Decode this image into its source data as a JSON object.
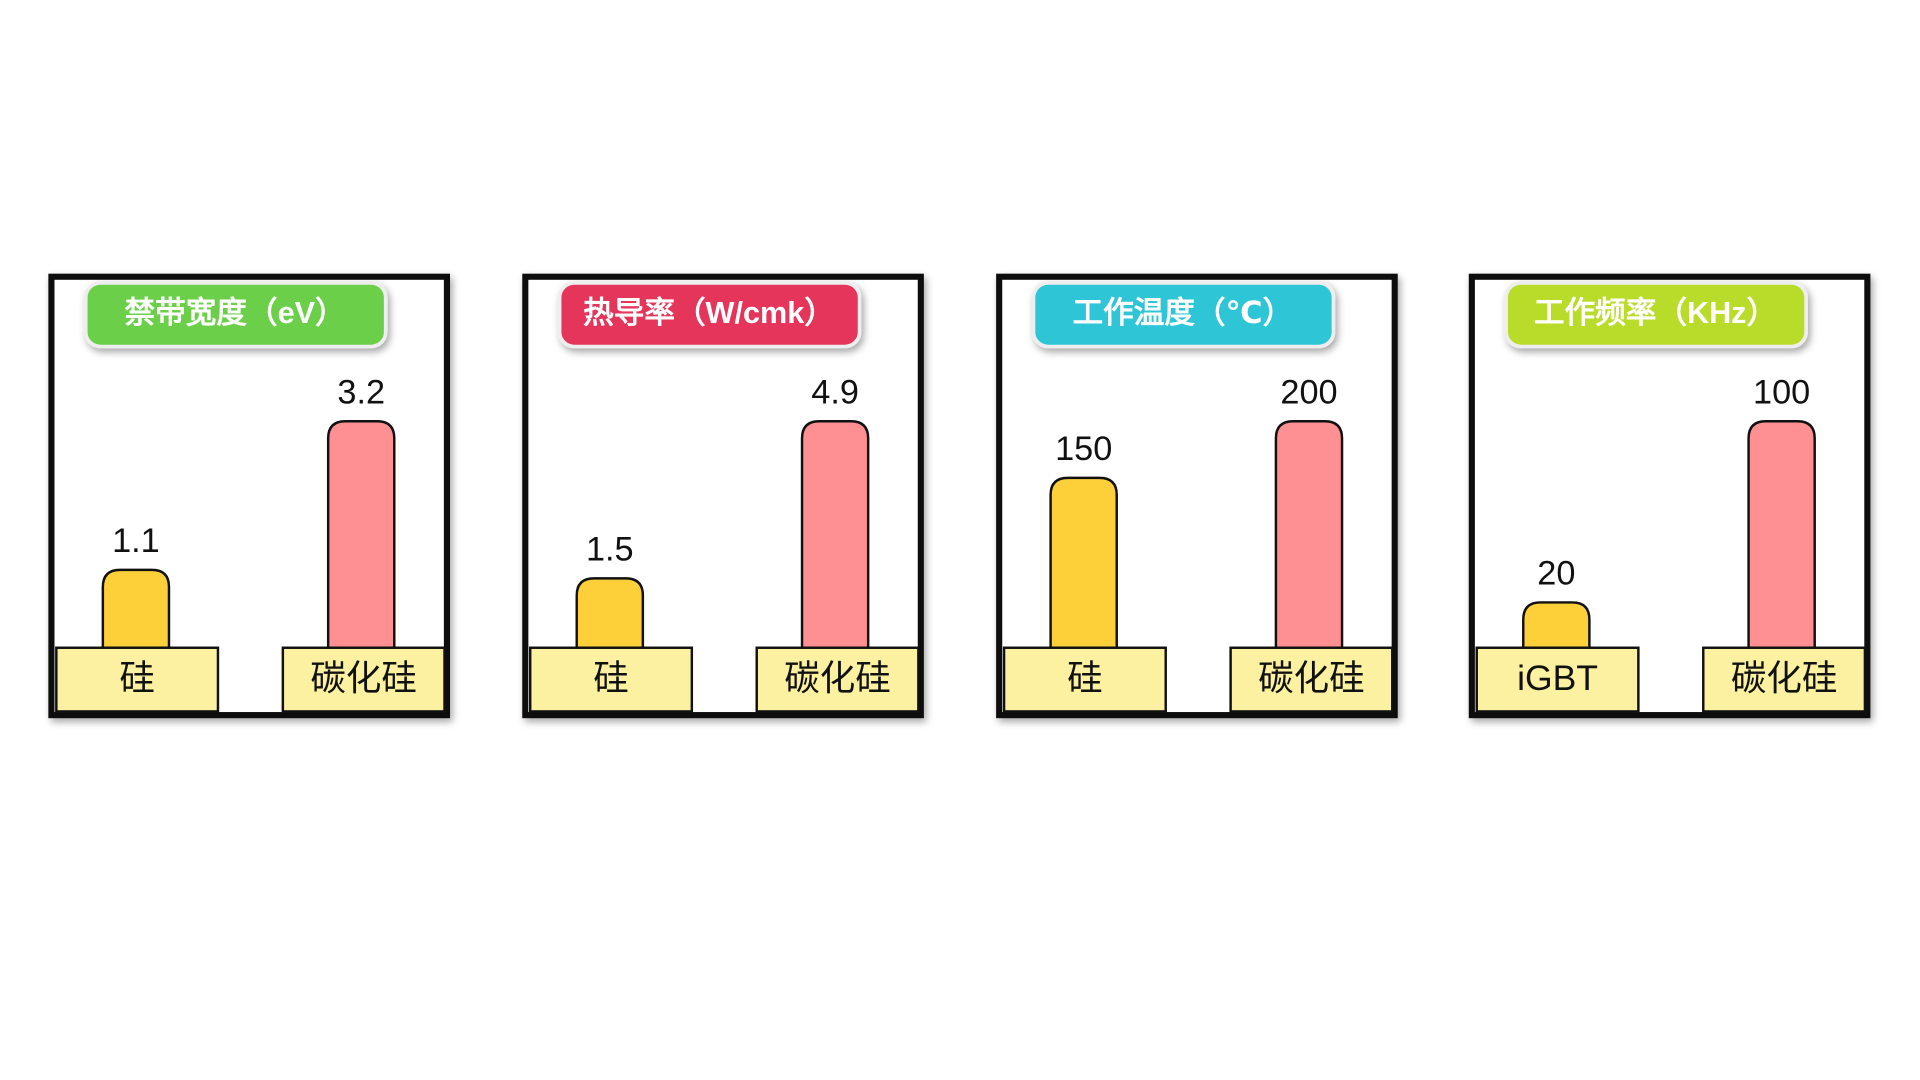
{
  "chart_data": [
    {
      "type": "bar",
      "title": "禁带宽度（eV）",
      "title_color": "#6ccf4a",
      "categories": [
        "硅",
        "碳化硅"
      ],
      "values": [
        1.1,
        3.2
      ],
      "colors": [
        "#fdd03a",
        "#fe8f92"
      ]
    },
    {
      "type": "bar",
      "title": "热导率（W/cmk）",
      "title_color": "#e5365a",
      "categories": [
        "硅",
        "碳化硅"
      ],
      "values": [
        1.5,
        4.9
      ],
      "colors": [
        "#fdd03a",
        "#fe8f92"
      ]
    },
    {
      "type": "bar",
      "title": "工作温度（℃）",
      "title_color": "#2ec5d6",
      "categories": [
        "硅",
        "碳化硅"
      ],
      "values": [
        150,
        200
      ],
      "colors": [
        "#fdd03a",
        "#fe8f92"
      ]
    },
    {
      "type": "bar",
      "title": "工作频率（KHz）",
      "title_color": "#b9dc2a",
      "categories": [
        "iGBT",
        "碳化硅"
      ],
      "values": [
        20,
        100
      ],
      "colors": [
        "#fdd03a",
        "#fe8f92"
      ]
    }
  ]
}
